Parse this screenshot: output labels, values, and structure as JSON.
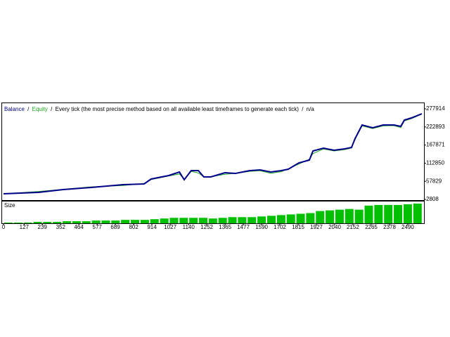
{
  "chart_data": [
    {
      "type": "line",
      "legend_separator": "/",
      "subtitle": "Every tick (the most precise method based on all available least timeframes to generate each tick)",
      "note": "n/a",
      "x": [
        0,
        216,
        368,
        541,
        736,
        866,
        909,
        1018,
        1083,
        1113,
        1156,
        1200,
        1234,
        1277,
        1364,
        1429,
        1516,
        1581,
        1646,
        1711,
        1754,
        1819,
        1884,
        1906,
        1971,
        2036,
        2101,
        2144,
        2166,
        2209,
        2274,
        2339,
        2404,
        2447,
        2469,
        2512,
        2577
      ],
      "series": [
        {
          "name": "Balance",
          "color": "#00008b",
          "values": [
            19900,
            24100,
            32700,
            39100,
            47600,
            49700,
            64700,
            75300,
            86000,
            62500,
            90300,
            90300,
            71100,
            71100,
            83900,
            81700,
            90300,
            92400,
            86000,
            90300,
            94500,
            113700,
            122200,
            150000,
            158500,
            152100,
            156400,
            160600,
            188300,
            228900,
            220300,
            228900,
            228900,
            224600,
            243800,
            250200,
            263000
          ]
        },
        {
          "name": "Equity",
          "color": "#1fa81f",
          "values": [
            19900,
            27000,
            33500,
            41000,
            45000,
            51000,
            63000,
            74000,
            80000,
            64000,
            88000,
            83000,
            71000,
            72000,
            79000,
            82000,
            88000,
            90000,
            82000,
            87000,
            96000,
            110000,
            125000,
            142000,
            156000,
            150000,
            154000,
            159000,
            185000,
            226000,
            218000,
            226000,
            227000,
            221000,
            241000,
            248000,
            262000
          ]
        }
      ],
      "xlim": [
        0,
        2590
      ],
      "ylim": [
        2808,
        277914
      ],
      "yticks": [
        2808,
        57829,
        112850,
        167871,
        222893,
        277914
      ]
    },
    {
      "type": "bar",
      "label": "Size",
      "color": "#00c000",
      "x": [
        30,
        90,
        150,
        210,
        270,
        330,
        390,
        450,
        510,
        570,
        630,
        690,
        750,
        810,
        870,
        930,
        990,
        1050,
        1110,
        1170,
        1230,
        1290,
        1350,
        1410,
        1470,
        1530,
        1590,
        1650,
        1710,
        1770,
        1830,
        1890,
        1950,
        2010,
        2070,
        2130,
        2190,
        2250,
        2310,
        2370,
        2430,
        2490,
        2550
      ],
      "values": [
        1,
        1,
        1,
        2,
        2,
        2,
        3,
        3,
        3,
        4,
        4,
        4,
        5,
        5,
        5,
        6,
        7,
        8,
        8,
        8,
        8,
        7,
        8,
        9,
        9,
        9,
        10,
        11,
        12,
        13,
        14,
        15,
        18,
        19,
        20,
        21,
        20,
        26,
        27,
        27,
        27,
        28,
        29
      ],
      "ylim": [
        0,
        30
      ],
      "xlim": [
        0,
        2590
      ],
      "xticks": [
        0,
        127,
        239,
        352,
        464,
        577,
        689,
        802,
        914,
        1027,
        1140,
        1252,
        1365,
        1477,
        1590,
        1702,
        1815,
        1927,
        2040,
        2152,
        2265,
        2378,
        2490
      ]
    }
  ]
}
